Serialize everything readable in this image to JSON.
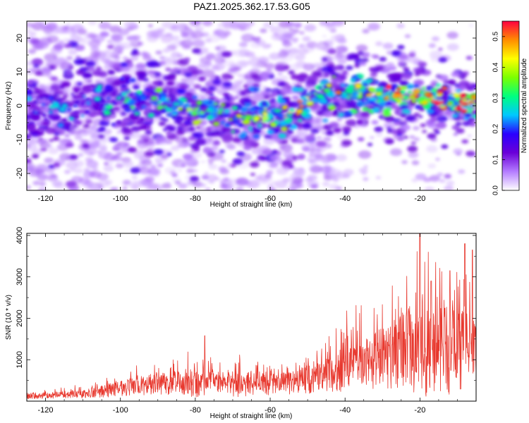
{
  "figure": {
    "title": "PAZ1.2025.362.17.53.G05"
  },
  "chart_data": [
    {
      "type": "heatmap",
      "name": "spectrogram",
      "xlabel": "Height of straight line (km)",
      "ylabel": "Frequency (Hz)",
      "xlim": [
        -125,
        -5
      ],
      "ylim": [
        -25,
        25
      ],
      "xticks": [
        -120,
        -100,
        -80,
        -60,
        -40,
        -20
      ],
      "yticks": [
        -20,
        -10,
        0,
        10,
        20
      ],
      "colorbar": {
        "label": "Normalized spectral amplitude",
        "range": [
          0.0,
          0.55
        ],
        "ticks": [
          0.0,
          0.1,
          0.2,
          0.3,
          0.4,
          0.5
        ],
        "tick_labels": [
          "0.0",
          "0.1",
          "0.2",
          "0.3",
          "0.4",
          "0.5"
        ],
        "colormap": [
          "#ffffff",
          "#b47cff",
          "#6a00d8",
          "#2a00ff",
          "#00c8ff",
          "#00ff80",
          "#7bff00",
          "#ffff00",
          "#ff8c00",
          "#ff0040"
        ]
      },
      "ridge": {
        "description_points_x": [
          -125,
          -110,
          -90,
          -70,
          -55,
          -45,
          -30,
          -15,
          -5
        ],
        "description_points_y": [
          -2,
          1,
          1,
          -3,
          -3,
          4,
          3,
          2,
          0
        ],
        "peak_amplitude": 0.55
      }
    },
    {
      "type": "line",
      "name": "snr",
      "xlabel": "Height of straight line (km)",
      "ylabel": "SNR (10 * v/v)",
      "xlim": [
        -125,
        -5
      ],
      "ylim": [
        0,
        4050
      ],
      "xticks": [
        -120,
        -100,
        -80,
        -60,
        -40,
        -20
      ],
      "yticks": [
        1000,
        2000,
        3000,
        4000
      ],
      "series": [
        {
          "name": "SNR",
          "color": "#e8392f",
          "envelope_x": [
            -125,
            -110,
            -100,
            -90,
            -80,
            -70,
            -60,
            -50,
            -40,
            -30,
            -20,
            -10,
            -5
          ],
          "envelope_mean": [
            120,
            180,
            300,
            420,
            450,
            420,
            430,
            520,
            800,
            1100,
            1300,
            1300,
            1250
          ],
          "envelope_amp": [
            100,
            150,
            300,
            350,
            500,
            450,
            400,
            500,
            800,
            1200,
            1700,
            1600,
            1300
          ],
          "peaks": [
            {
              "x": -77.5,
              "y": 1580
            },
            {
              "x": -20,
              "y": 4050
            },
            {
              "x": -17,
              "y": 2900
            },
            {
              "x": -12,
              "y": 3150
            },
            {
              "x": -8,
              "y": 3800
            },
            {
              "x": -6,
              "y": 3650
            }
          ]
        }
      ]
    }
  ]
}
